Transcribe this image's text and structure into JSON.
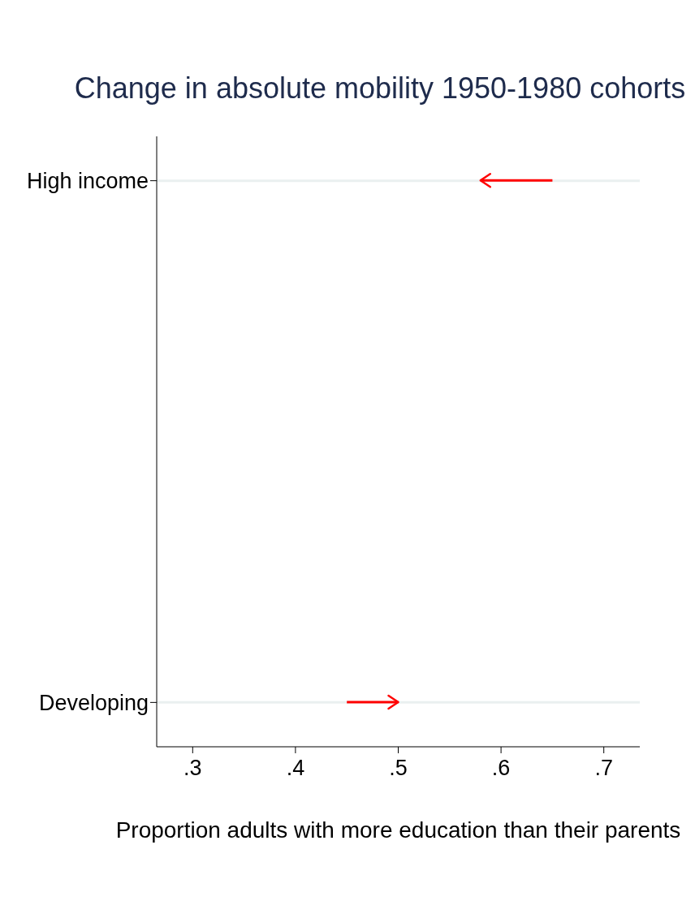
{
  "chart_data": {
    "type": "bar",
    "orientation": "horizontal",
    "title": "Change in absolute mobility 1950-1980 cohorts",
    "xlabel": "Proportion adults with more education than their parents",
    "categories": [
      "High income",
      "Developing"
    ],
    "base": [
      0.65,
      0.45
    ],
    "values": [
      -0.07,
      0.05
    ],
    "color": "#ff0000",
    "xlim": [
      0.265,
      0.735
    ],
    "xticks": [
      {
        "value": 0.3,
        "label": ".3"
      },
      {
        "value": 0.4,
        "label": ".4"
      },
      {
        "value": 0.5,
        "label": ".5"
      },
      {
        "value": 0.6,
        "label": ".6"
      },
      {
        "value": 0.7,
        "label": ".7"
      }
    ],
    "grid": "y"
  }
}
